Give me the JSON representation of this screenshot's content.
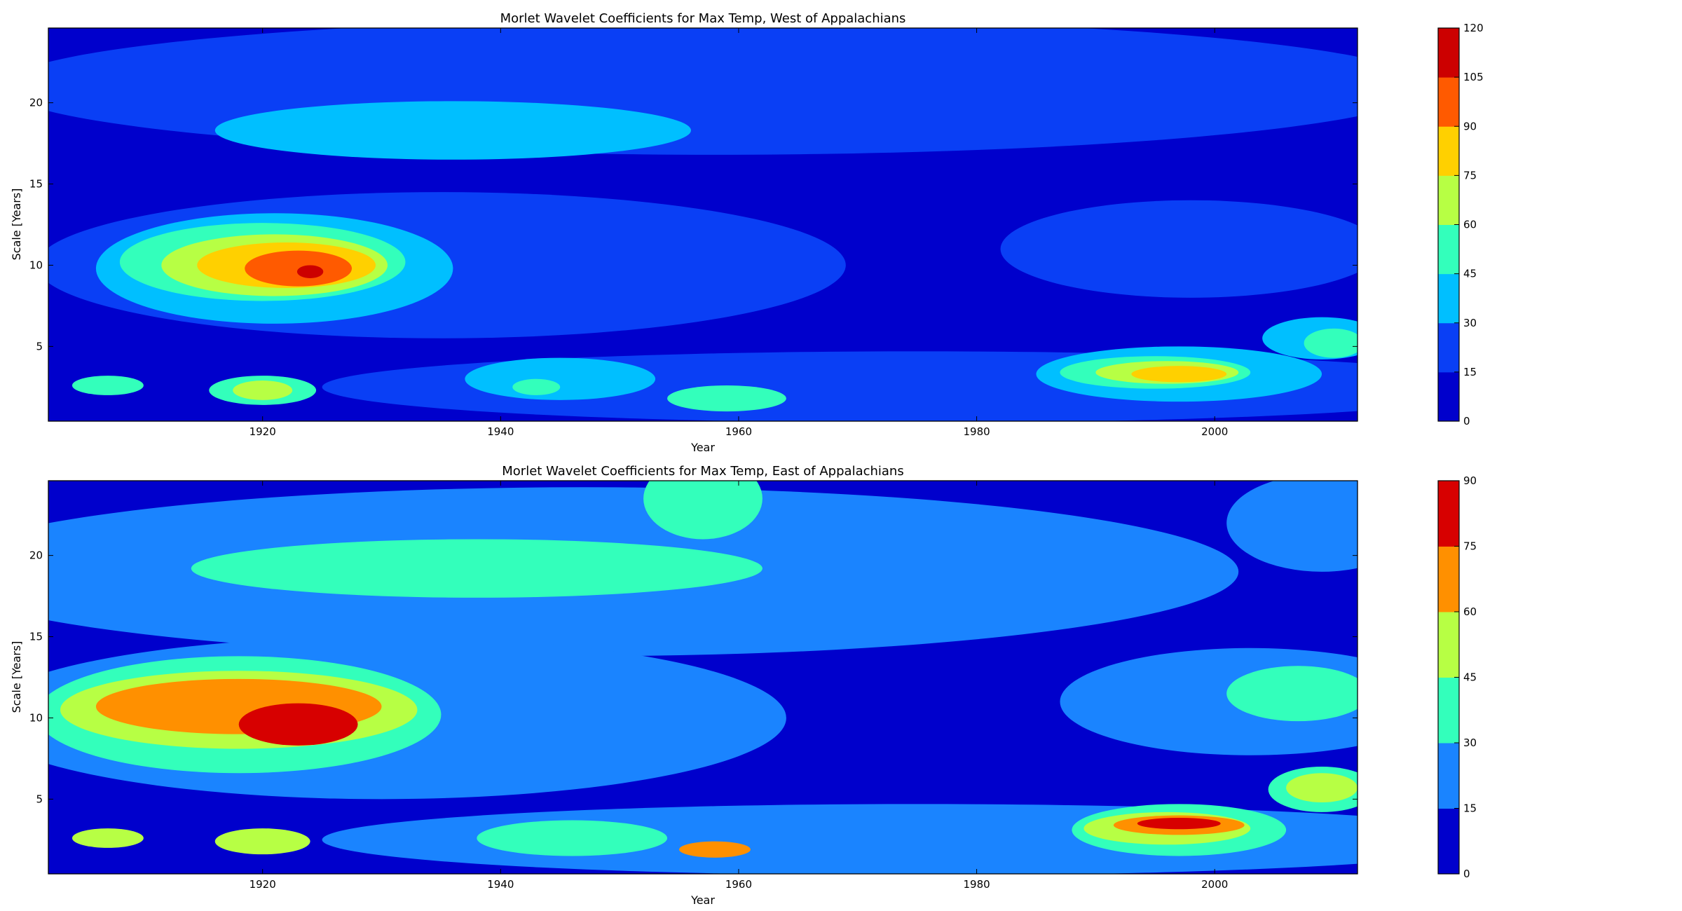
{
  "chart_data": [
    {
      "type": "heatmap",
      "subtype": "filled-contour",
      "title": "Morlet Wavelet Coefficients for Max Temp, West of Appalachians",
      "xlabel": "Year",
      "ylabel": "Scale [Years]",
      "xlim": [
        1902,
        2012
      ],
      "ylim": [
        0.4,
        24.6
      ],
      "xticks": [
        1920,
        1940,
        1960,
        1980,
        2000
      ],
      "yticks": [
        5,
        10,
        15,
        20
      ],
      "colorbar": {
        "levels": [
          0,
          15,
          30,
          45,
          60,
          75,
          90,
          105,
          120
        ],
        "colors": [
          "#0000cc",
          "#0a3ff5",
          "#00bfff",
          "#33ffbb",
          "#b7ff44",
          "#ffd000",
          "#ff5a00",
          "#cc0000"
        ]
      },
      "background_level": 0,
      "blobs": [
        {
          "x": 1958,
          "y": 21.0,
          "rx": 60,
          "ry": 4.2,
          "level": 1
        },
        {
          "x": 1935,
          "y": 10.0,
          "rx": 34,
          "ry": 4.5,
          "level": 1
        },
        {
          "x": 1998,
          "y": 11.0,
          "rx": 16,
          "ry": 3.0,
          "level": 1
        },
        {
          "x": 1975,
          "y": 2.5,
          "rx": 50,
          "ry": 2.2,
          "level": 1
        },
        {
          "x": 1936,
          "y": 18.3,
          "rx": 20,
          "ry": 1.8,
          "level": 2
        },
        {
          "x": 1921,
          "y": 9.8,
          "rx": 15,
          "ry": 3.4,
          "level": 2
        },
        {
          "x": 1997,
          "y": 3.3,
          "rx": 12,
          "ry": 1.7,
          "level": 2
        },
        {
          "x": 1945,
          "y": 3.0,
          "rx": 8,
          "ry": 1.3,
          "level": 2
        },
        {
          "x": 2009,
          "y": 5.5,
          "rx": 5,
          "ry": 1.3,
          "level": 2
        },
        {
          "x": 1920,
          "y": 10.2,
          "rx": 12,
          "ry": 2.4,
          "level": 3
        },
        {
          "x": 1995,
          "y": 3.4,
          "rx": 8,
          "ry": 1.0,
          "level": 3
        },
        {
          "x": 1920,
          "y": 2.3,
          "rx": 4.5,
          "ry": 0.9,
          "level": 3
        },
        {
          "x": 1959,
          "y": 1.8,
          "rx": 5,
          "ry": 0.8,
          "level": 3
        },
        {
          "x": 1907,
          "y": 2.6,
          "rx": 3,
          "ry": 0.6,
          "level": 3
        },
        {
          "x": 1943,
          "y": 2.5,
          "rx": 2,
          "ry": 0.5,
          "level": 3
        },
        {
          "x": 2010,
          "y": 5.2,
          "rx": 2.5,
          "ry": 0.9,
          "level": 3
        },
        {
          "x": 1921,
          "y": 10.0,
          "rx": 9.5,
          "ry": 1.9,
          "level": 4
        },
        {
          "x": 1996,
          "y": 3.4,
          "rx": 6,
          "ry": 0.7,
          "level": 4
        },
        {
          "x": 1920,
          "y": 2.3,
          "rx": 2.5,
          "ry": 0.6,
          "level": 4
        },
        {
          "x": 1922,
          "y": 10.0,
          "rx": 7.5,
          "ry": 1.4,
          "level": 5
        },
        {
          "x": 1997,
          "y": 3.3,
          "rx": 4,
          "ry": 0.5,
          "level": 5
        },
        {
          "x": 1923,
          "y": 9.8,
          "rx": 4.5,
          "ry": 1.1,
          "level": 6
        },
        {
          "x": 1924,
          "y": 9.6,
          "rx": 1.1,
          "ry": 0.4,
          "level": 7
        }
      ]
    },
    {
      "type": "heatmap",
      "subtype": "filled-contour",
      "title": "Morlet Wavelet Coefficients for Max Temp, East of Appalachians",
      "xlabel": "Year",
      "ylabel": "Scale [Years]",
      "xlim": [
        1902,
        2012
      ],
      "ylim": [
        0.4,
        24.6
      ],
      "xticks": [
        1920,
        1940,
        1960,
        1980,
        2000
      ],
      "yticks": [
        5,
        10,
        15,
        20
      ],
      "colorbar": {
        "levels": [
          0,
          15,
          30,
          45,
          60,
          75,
          90
        ],
        "colors": [
          "#0000cc",
          "#1a84ff",
          "#33ffbb",
          "#b7ff44",
          "#ff9000",
          "#d70000"
        ]
      },
      "background_level": 0,
      "blobs": [
        {
          "x": 1947,
          "y": 19.0,
          "rx": 55,
          "ry": 5.2,
          "level": 1
        },
        {
          "x": 1930,
          "y": 10.0,
          "rx": 34,
          "ry": 5.0,
          "level": 1
        },
        {
          "x": 2003,
          "y": 11.0,
          "rx": 16,
          "ry": 3.3,
          "level": 1
        },
        {
          "x": 1975,
          "y": 2.5,
          "rx": 50,
          "ry": 2.2,
          "level": 1
        },
        {
          "x": 2009,
          "y": 22.0,
          "rx": 8,
          "ry": 3.0,
          "level": 1
        },
        {
          "x": 1938,
          "y": 19.2,
          "rx": 24,
          "ry": 1.8,
          "level": 2
        },
        {
          "x": 1957,
          "y": 23.5,
          "rx": 5,
          "ry": 2.5,
          "level": 2
        },
        {
          "x": 1918,
          "y": 10.2,
          "rx": 17,
          "ry": 3.6,
          "level": 2
        },
        {
          "x": 2007,
          "y": 11.5,
          "rx": 6,
          "ry": 1.7,
          "level": 2
        },
        {
          "x": 1997,
          "y": 3.1,
          "rx": 9,
          "ry": 1.6,
          "level": 2
        },
        {
          "x": 2009,
          "y": 5.6,
          "rx": 4.5,
          "ry": 1.4,
          "level": 2
        },
        {
          "x": 1946,
          "y": 2.6,
          "rx": 8,
          "ry": 1.1,
          "level": 2
        },
        {
          "x": 1918,
          "y": 10.5,
          "rx": 15,
          "ry": 2.4,
          "level": 3
        },
        {
          "x": 1996,
          "y": 3.2,
          "rx": 7,
          "ry": 1.0,
          "level": 3
        },
        {
          "x": 2009,
          "y": 5.7,
          "rx": 3,
          "ry": 0.9,
          "level": 3
        },
        {
          "x": 1920,
          "y": 2.4,
          "rx": 4,
          "ry": 0.8,
          "level": 3
        },
        {
          "x": 1907,
          "y": 2.6,
          "rx": 3,
          "ry": 0.6,
          "level": 3
        },
        {
          "x": 1918,
          "y": 10.7,
          "rx": 12,
          "ry": 1.7,
          "level": 4
        },
        {
          "x": 1997,
          "y": 3.4,
          "rx": 5.5,
          "ry": 0.6,
          "level": 4
        },
        {
          "x": 1958,
          "y": 1.9,
          "rx": 3,
          "ry": 0.5,
          "level": 4
        },
        {
          "x": 1923,
          "y": 9.6,
          "rx": 5,
          "ry": 1.3,
          "level": 5
        },
        {
          "x": 1997,
          "y": 3.5,
          "rx": 3.5,
          "ry": 0.35,
          "level": 5
        }
      ]
    }
  ]
}
